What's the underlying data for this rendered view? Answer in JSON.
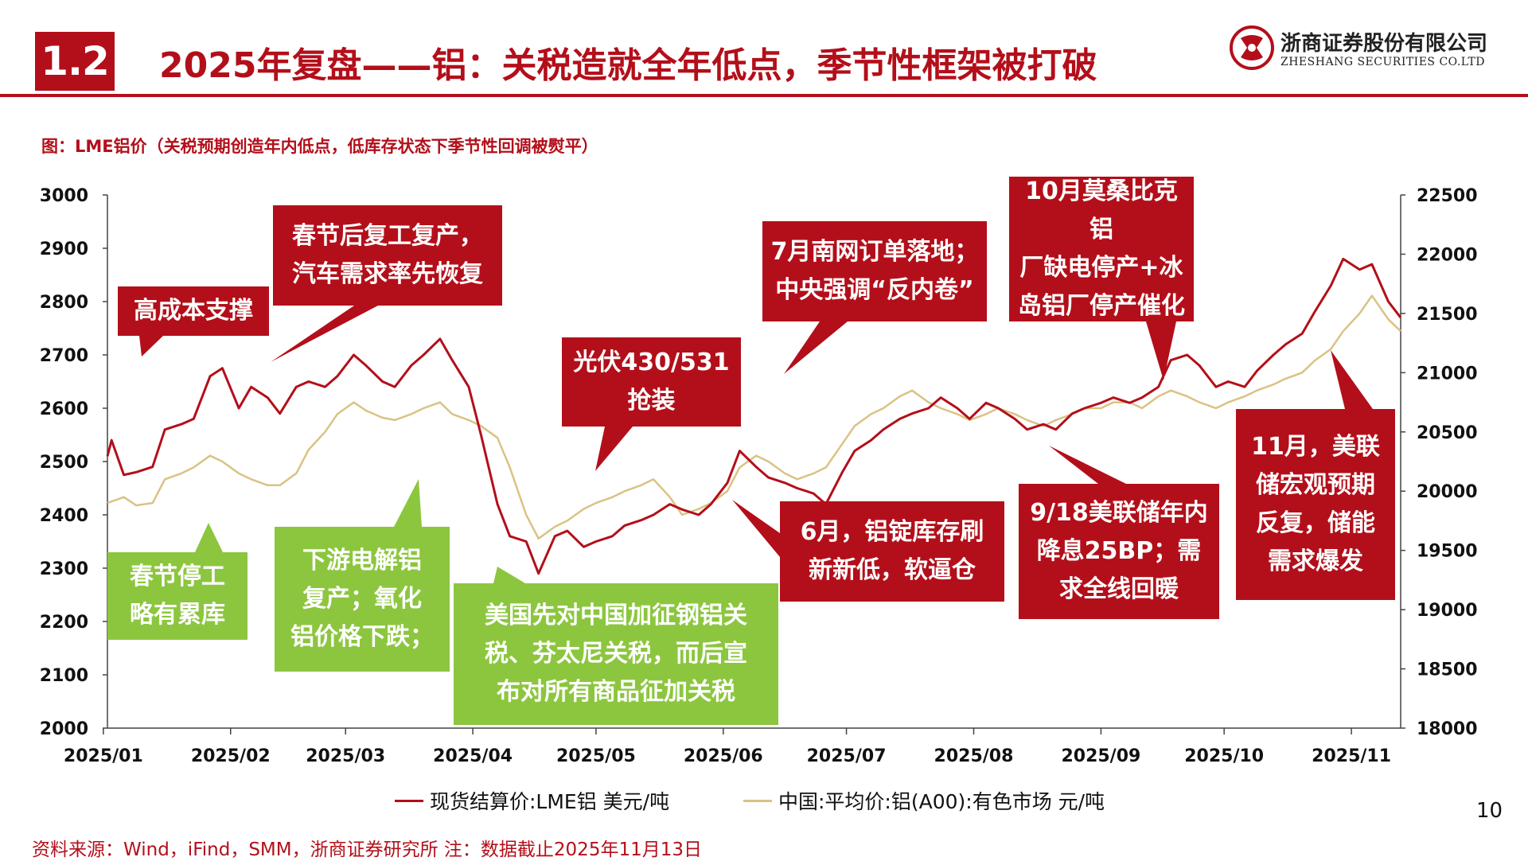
{
  "header": {
    "section": "1.2",
    "title": "2025年复盘——铝：关税造就全年低点，季节性框架被打破"
  },
  "logo": {
    "cn": "浙商证券股份有限公司",
    "en": "ZHESHANG SECURITIES CO.LTD",
    "brand_color": "#b30f1a"
  },
  "figure_caption": "图：LME铝价（关税预期创造年内低点，低库存状态下季节性回调被熨平）",
  "chart_data": {
    "type": "line",
    "x_tick_labels": [
      "2025/01",
      "2025/02",
      "2025/03",
      "2025/04",
      "2025/05",
      "2025/06",
      "2025/07",
      "2025/08",
      "2025/09",
      "2025/10",
      "2025/11"
    ],
    "x_range": [
      "2025-01-02",
      "2025-11-13"
    ],
    "y_left": {
      "min": 2000,
      "max": 3000,
      "step": 100,
      "ticks": [
        "2000",
        "2100",
        "2200",
        "2300",
        "2400",
        "2500",
        "2600",
        "2700",
        "2800",
        "2900",
        "3000"
      ]
    },
    "y_right": {
      "min": 18000,
      "max": 22500,
      "step": 500,
      "ticks": [
        "18000",
        "18500",
        "19000",
        "19500",
        "20000",
        "20500",
        "21000",
        "21500",
        "22000",
        "22500"
      ]
    },
    "grid": false,
    "legend_position": "bottom",
    "series": [
      {
        "name": "现货结算价:LME铝 美元/吨",
        "axis": "left",
        "color": "#b30f1a",
        "points": [
          [
            "2025-01-02",
            2510
          ],
          [
            "2025-01-03",
            2540
          ],
          [
            "2025-01-06",
            2475
          ],
          [
            "2025-01-09",
            2480
          ],
          [
            "2025-01-13",
            2490
          ],
          [
            "2025-01-16",
            2560
          ],
          [
            "2025-01-20",
            2570
          ],
          [
            "2025-01-23",
            2580
          ],
          [
            "2025-01-27",
            2660
          ],
          [
            "2025-01-30",
            2675
          ],
          [
            "2025-02-03",
            2600
          ],
          [
            "2025-02-06",
            2640
          ],
          [
            "2025-02-10",
            2620
          ],
          [
            "2025-02-13",
            2590
          ],
          [
            "2025-02-17",
            2640
          ],
          [
            "2025-02-20",
            2650
          ],
          [
            "2025-02-24",
            2640
          ],
          [
            "2025-02-27",
            2660
          ],
          [
            "2025-03-03",
            2700
          ],
          [
            "2025-03-06",
            2680
          ],
          [
            "2025-03-10",
            2650
          ],
          [
            "2025-03-13",
            2640
          ],
          [
            "2025-03-17",
            2680
          ],
          [
            "2025-03-20",
            2700
          ],
          [
            "2025-03-24",
            2730
          ],
          [
            "2025-03-27",
            2690
          ],
          [
            "2025-03-31",
            2640
          ],
          [
            "2025-04-03",
            2550
          ],
          [
            "2025-04-07",
            2420
          ],
          [
            "2025-04-10",
            2360
          ],
          [
            "2025-04-14",
            2350
          ],
          [
            "2025-04-17",
            2290
          ],
          [
            "2025-04-21",
            2360
          ],
          [
            "2025-04-24",
            2370
          ],
          [
            "2025-04-28",
            2340
          ],
          [
            "2025-05-01",
            2350
          ],
          [
            "2025-05-05",
            2360
          ],
          [
            "2025-05-08",
            2380
          ],
          [
            "2025-05-12",
            2390
          ],
          [
            "2025-05-15",
            2400
          ],
          [
            "2025-05-19",
            2420
          ],
          [
            "2025-05-22",
            2410
          ],
          [
            "2025-05-26",
            2400
          ],
          [
            "2025-05-29",
            2420
          ],
          [
            "2025-06-02",
            2460
          ],
          [
            "2025-06-05",
            2520
          ],
          [
            "2025-06-09",
            2490
          ],
          [
            "2025-06-12",
            2470
          ],
          [
            "2025-06-16",
            2460
          ],
          [
            "2025-06-19",
            2450
          ],
          [
            "2025-06-23",
            2440
          ],
          [
            "2025-06-26",
            2420
          ],
          [
            "2025-06-30",
            2480
          ],
          [
            "2025-07-03",
            2520
          ],
          [
            "2025-07-07",
            2540
          ],
          [
            "2025-07-10",
            2560
          ],
          [
            "2025-07-14",
            2580
          ],
          [
            "2025-07-17",
            2590
          ],
          [
            "2025-07-21",
            2600
          ],
          [
            "2025-07-24",
            2620
          ],
          [
            "2025-07-28",
            2600
          ],
          [
            "2025-07-31",
            2580
          ],
          [
            "2025-08-04",
            2610
          ],
          [
            "2025-08-07",
            2600
          ],
          [
            "2025-08-11",
            2580
          ],
          [
            "2025-08-14",
            2560
          ],
          [
            "2025-08-18",
            2570
          ],
          [
            "2025-08-21",
            2560
          ],
          [
            "2025-08-25",
            2590
          ],
          [
            "2025-08-28",
            2600
          ],
          [
            "2025-09-01",
            2610
          ],
          [
            "2025-09-04",
            2620
          ],
          [
            "2025-09-08",
            2610
          ],
          [
            "2025-09-11",
            2620
          ],
          [
            "2025-09-15",
            2640
          ],
          [
            "2025-09-18",
            2690
          ],
          [
            "2025-09-22",
            2700
          ],
          [
            "2025-09-25",
            2680
          ],
          [
            "2025-09-29",
            2640
          ],
          [
            "2025-10-02",
            2650
          ],
          [
            "2025-10-06",
            2640
          ],
          [
            "2025-10-09",
            2670
          ],
          [
            "2025-10-13",
            2700
          ],
          [
            "2025-10-16",
            2720
          ],
          [
            "2025-10-20",
            2740
          ],
          [
            "2025-10-23",
            2780
          ],
          [
            "2025-10-27",
            2830
          ],
          [
            "2025-10-30",
            2880
          ],
          [
            "2025-11-03",
            2860
          ],
          [
            "2025-11-06",
            2870
          ],
          [
            "2025-11-10",
            2800
          ],
          [
            "2025-11-13",
            2770
          ]
        ]
      },
      {
        "name": "中国:平均价:铝(A00):有色市场 元/吨",
        "axis": "right",
        "color": "#d9c384",
        "points": [
          [
            "2025-01-02",
            19900
          ],
          [
            "2025-01-06",
            19950
          ],
          [
            "2025-01-09",
            19880
          ],
          [
            "2025-01-13",
            19900
          ],
          [
            "2025-01-16",
            20100
          ],
          [
            "2025-01-20",
            20150
          ],
          [
            "2025-01-23",
            20200
          ],
          [
            "2025-01-27",
            20300
          ],
          [
            "2025-01-30",
            20250
          ],
          [
            "2025-02-03",
            20150
          ],
          [
            "2025-02-06",
            20100
          ],
          [
            "2025-02-10",
            20050
          ],
          [
            "2025-02-13",
            20050
          ],
          [
            "2025-02-17",
            20150
          ],
          [
            "2025-02-20",
            20350
          ],
          [
            "2025-02-24",
            20500
          ],
          [
            "2025-02-27",
            20650
          ],
          [
            "2025-03-03",
            20750
          ],
          [
            "2025-03-06",
            20680
          ],
          [
            "2025-03-10",
            20620
          ],
          [
            "2025-03-13",
            20600
          ],
          [
            "2025-03-17",
            20650
          ],
          [
            "2025-03-20",
            20700
          ],
          [
            "2025-03-24",
            20750
          ],
          [
            "2025-03-27",
            20650
          ],
          [
            "2025-03-31",
            20600
          ],
          [
            "2025-04-03",
            20550
          ],
          [
            "2025-04-07",
            20450
          ],
          [
            "2025-04-10",
            20200
          ],
          [
            "2025-04-14",
            19800
          ],
          [
            "2025-04-17",
            19600
          ],
          [
            "2025-04-21",
            19700
          ],
          [
            "2025-04-24",
            19750
          ],
          [
            "2025-04-28",
            19850
          ],
          [
            "2025-05-01",
            19900
          ],
          [
            "2025-05-05",
            19950
          ],
          [
            "2025-05-08",
            20000
          ],
          [
            "2025-05-12",
            20050
          ],
          [
            "2025-05-15",
            20100
          ],
          [
            "2025-05-19",
            19950
          ],
          [
            "2025-05-22",
            19800
          ],
          [
            "2025-05-26",
            19850
          ],
          [
            "2025-05-29",
            19900
          ],
          [
            "2025-06-02",
            20000
          ],
          [
            "2025-06-05",
            20200
          ],
          [
            "2025-06-09",
            20300
          ],
          [
            "2025-06-12",
            20250
          ],
          [
            "2025-06-16",
            20150
          ],
          [
            "2025-06-19",
            20100
          ],
          [
            "2025-06-23",
            20150
          ],
          [
            "2025-06-26",
            20200
          ],
          [
            "2025-06-30",
            20400
          ],
          [
            "2025-07-03",
            20550
          ],
          [
            "2025-07-07",
            20650
          ],
          [
            "2025-07-10",
            20700
          ],
          [
            "2025-07-14",
            20800
          ],
          [
            "2025-07-17",
            20850
          ],
          [
            "2025-07-21",
            20750
          ],
          [
            "2025-07-24",
            20700
          ],
          [
            "2025-07-28",
            20650
          ],
          [
            "2025-07-31",
            20600
          ],
          [
            "2025-08-04",
            20650
          ],
          [
            "2025-08-07",
            20700
          ],
          [
            "2025-08-11",
            20650
          ],
          [
            "2025-08-14",
            20600
          ],
          [
            "2025-08-18",
            20550
          ],
          [
            "2025-08-21",
            20600
          ],
          [
            "2025-08-25",
            20650
          ],
          [
            "2025-08-28",
            20700
          ],
          [
            "2025-09-01",
            20700
          ],
          [
            "2025-09-04",
            20750
          ],
          [
            "2025-09-08",
            20750
          ],
          [
            "2025-09-11",
            20700
          ],
          [
            "2025-09-15",
            20800
          ],
          [
            "2025-09-18",
            20850
          ],
          [
            "2025-09-22",
            20800
          ],
          [
            "2025-09-25",
            20750
          ],
          [
            "2025-09-29",
            20700
          ],
          [
            "2025-10-02",
            20750
          ],
          [
            "2025-10-06",
            20800
          ],
          [
            "2025-10-09",
            20850
          ],
          [
            "2025-10-13",
            20900
          ],
          [
            "2025-10-16",
            20950
          ],
          [
            "2025-10-20",
            21000
          ],
          [
            "2025-10-23",
            21100
          ],
          [
            "2025-10-27",
            21200
          ],
          [
            "2025-10-30",
            21350
          ],
          [
            "2025-11-03",
            21500
          ],
          [
            "2025-11-06",
            21650
          ],
          [
            "2025-11-10",
            21450
          ],
          [
            "2025-11-13",
            21350
          ]
        ]
      }
    ]
  },
  "annotations": [
    {
      "id": "high-cost-support",
      "color": "red",
      "text": "高成本支撑"
    },
    {
      "id": "post-festival-resume",
      "color": "red",
      "text": "春节后复工复产，\n汽车需求率先恢复"
    },
    {
      "id": "pv-rush",
      "color": "red",
      "text": "光伏430/531\n抢装"
    },
    {
      "id": "july-grid-orders",
      "color": "red",
      "text": "7月南网订单落地；\n中央强调“反内卷”"
    },
    {
      "id": "oct-mozambique",
      "color": "red",
      "text": "10月莫桑比克铝\n厂缺电停产+冰\n岛铝厂停产催化"
    },
    {
      "id": "june-inventory-low",
      "color": "red",
      "text": "6月，铝锭库存刷\n新新低，软逼仓"
    },
    {
      "id": "sep18-fed-cut",
      "color": "red",
      "text": "9/18美联储年内\n降息25BP；需\n求全线回暖"
    },
    {
      "id": "nov-fed-energy",
      "color": "red",
      "text": "11月，美联\n储宏观预期\n反复，储能\n需求爆发"
    },
    {
      "id": "spring-festival-stock",
      "color": "green",
      "text": "春节停工\n略有累库"
    },
    {
      "id": "downstream-resume",
      "color": "green",
      "text": "下游电解铝\n复产；氧化\n铝价格下跌；"
    },
    {
      "id": "us-tariffs",
      "color": "green",
      "text": "美国先对中国加征钢铝关\n税、芬太尼关税，而后宣\n布对所有商品征加关税"
    }
  ],
  "legend": {
    "lme": "现货结算价:LME铝 美元/吨",
    "china": "中国:平均价:铝(A00):有色市场 元/吨"
  },
  "page_number": "10",
  "source": "资料来源：Wind，iFind，SMM，浙商证券研究所 注：数据截止2025年11月13日"
}
